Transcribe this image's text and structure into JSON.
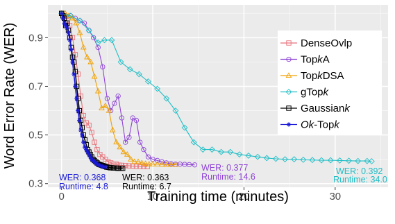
{
  "chart_data": {
    "type": "line",
    "xlabel": "Training time (minutes)",
    "ylabel": "Word Error Rate (WER)",
    "xlim": [
      -1.5,
      35.8
    ],
    "ylim": [
      0.285,
      1.035
    ],
    "xticks": [
      0,
      10,
      20,
      30
    ],
    "yticks": [
      0.3,
      0.5,
      0.7,
      0.9
    ],
    "ytick_labels": [
      "0.3",
      "0.5",
      "0.7",
      "0.9"
    ],
    "grid": true,
    "legend_position": "right",
    "series": [
      {
        "name": "DenseOvlp",
        "color": "#e8727a",
        "marker": "square",
        "x": [
          0,
          0.3,
          0.6,
          0.9,
          1.2,
          1.5,
          1.8,
          2.1,
          2.4,
          2.7,
          3.0,
          3.3,
          3.6,
          3.9,
          4.2,
          4.5,
          4.8,
          5.1,
          5.4,
          5.7,
          6.0,
          6.3,
          6.6,
          7.0,
          7.4,
          7.8,
          8.2,
          8.6,
          9.0,
          9.4
        ],
        "y": [
          1.0,
          0.99,
          0.97,
          0.95,
          0.9,
          0.83,
          0.75,
          0.66,
          0.58,
          0.55,
          0.54,
          0.51,
          0.47,
          0.44,
          0.42,
          0.41,
          0.4,
          0.39,
          0.385,
          0.38,
          0.38,
          0.376,
          0.375,
          0.374,
          0.373,
          0.372,
          0.371,
          0.371,
          0.37,
          0.37
        ]
      },
      {
        "name": "TopkA",
        "color": "#8e44d6",
        "marker": "circle",
        "x": [
          0,
          0.5,
          1.0,
          1.5,
          2.0,
          2.5,
          3.0,
          3.5,
          4.0,
          4.5,
          5.0,
          5.4,
          5.8,
          6.2,
          6.6,
          7.0,
          7.4,
          7.8,
          8.2,
          8.6,
          9.0,
          9.5,
          10.0,
          10.5,
          11.0,
          11.5,
          12.0,
          12.5,
          13.0,
          13.5,
          14.0,
          14.6
        ],
        "y": [
          1.0,
          0.99,
          0.99,
          0.98,
          0.97,
          0.96,
          0.93,
          0.9,
          0.86,
          0.78,
          0.65,
          0.6,
          0.63,
          0.66,
          0.57,
          0.47,
          0.49,
          0.57,
          0.56,
          0.47,
          0.44,
          0.41,
          0.4,
          0.395,
          0.39,
          0.385,
          0.382,
          0.38,
          0.38,
          0.379,
          0.378,
          0.377
        ]
      },
      {
        "name": "TopkDSA",
        "color": "#f0a000",
        "marker": "triangle",
        "x": [
          0,
          0.4,
          0.8,
          1.2,
          1.6,
          2.0,
          2.4,
          2.8,
          3.2,
          3.6,
          4.0,
          4.4,
          4.8,
          5.2,
          5.6,
          6.0,
          6.4,
          6.8,
          7.2,
          7.6,
          8.0,
          8.4,
          8.8,
          9.2,
          9.6,
          10.0,
          10.5,
          11.0,
          11.5,
          12.0,
          12.5
        ],
        "y": [
          1.0,
          1.0,
          0.99,
          0.98,
          0.96,
          0.92,
          0.86,
          0.82,
          0.8,
          0.74,
          0.68,
          0.61,
          0.62,
          0.6,
          0.52,
          0.47,
          0.45,
          0.43,
          0.42,
          0.4,
          0.39,
          0.39,
          0.385,
          0.382,
          0.38,
          0.38,
          0.38,
          0.379,
          0.378,
          0.378,
          0.378
        ]
      },
      {
        "name": "gTopk",
        "color": "#1fbec6",
        "marker": "diamond",
        "x": [
          0,
          1.0,
          2.0,
          3.0,
          4.0,
          4.7,
          5.5,
          6.5,
          7.5,
          8.5,
          9.5,
          10.5,
          11.5,
          12.5,
          13.5,
          14.5,
          15.5,
          16.5,
          17.5,
          18.5,
          19.5,
          20.5,
          21.5,
          22.5,
          23.5,
          24.5,
          25.5,
          26.5,
          27.5,
          28.5,
          29.5,
          30.5,
          31.5,
          32.5,
          33.5,
          34.0
        ],
        "y": [
          1.0,
          0.99,
          0.97,
          0.93,
          0.88,
          0.89,
          0.89,
          0.8,
          0.77,
          0.75,
          0.72,
          0.69,
          0.65,
          0.6,
          0.53,
          0.47,
          0.44,
          0.44,
          0.43,
          0.43,
          0.42,
          0.415,
          0.41,
          0.405,
          0.402,
          0.4,
          0.4,
          0.398,
          0.397,
          0.396,
          0.396,
          0.395,
          0.394,
          0.393,
          0.393,
          0.392
        ]
      },
      {
        "name": "Gaussiank",
        "color": "#000000",
        "marker": "square-open",
        "x": [
          0,
          0.15,
          0.3,
          0.45,
          0.6,
          0.75,
          0.9,
          1.05,
          1.2,
          1.35,
          1.5,
          1.65,
          1.8,
          1.95,
          2.1,
          2.25,
          2.4,
          2.55,
          2.7,
          2.85,
          3.0,
          3.15,
          3.3,
          3.45,
          3.6,
          3.75,
          3.9,
          4.05,
          4.2,
          4.35,
          4.5,
          4.65,
          4.8,
          4.95,
          5.1,
          5.25,
          5.4,
          5.55,
          5.7,
          5.85,
          6.0,
          6.15,
          6.3,
          6.5,
          6.7
        ],
        "y": [
          1.0,
          0.99,
          0.98,
          0.95,
          0.96,
          0.93,
          0.9,
          0.86,
          0.82,
          0.8,
          0.76,
          0.7,
          0.65,
          0.6,
          0.56,
          0.53,
          0.5,
          0.48,
          0.46,
          0.44,
          0.43,
          0.42,
          0.41,
          0.4,
          0.395,
          0.39,
          0.385,
          0.38,
          0.378,
          0.376,
          0.374,
          0.372,
          0.37,
          0.368,
          0.367,
          0.366,
          0.365,
          0.365,
          0.364,
          0.364,
          0.364,
          0.363,
          0.363,
          0.363,
          0.363
        ]
      },
      {
        "name": "Ok-Topk",
        "color": "#1a1ad6",
        "marker": "star",
        "x": [
          0,
          0.15,
          0.3,
          0.45,
          0.6,
          0.75,
          0.9,
          1.05,
          1.2,
          1.35,
          1.5,
          1.65,
          1.8,
          1.95,
          2.1,
          2.25,
          2.4,
          2.55,
          2.7,
          2.85,
          3.0,
          3.15,
          3.3,
          3.45,
          3.6,
          3.75,
          3.9,
          4.05,
          4.2,
          4.35,
          4.5,
          4.65,
          4.8
        ],
        "y": [
          1.0,
          0.98,
          0.96,
          0.95,
          0.94,
          0.92,
          0.89,
          0.85,
          0.8,
          0.75,
          0.7,
          0.65,
          0.6,
          0.56,
          0.52,
          0.5,
          0.47,
          0.45,
          0.44,
          0.43,
          0.42,
          0.41,
          0.4,
          0.395,
          0.39,
          0.385,
          0.38,
          0.377,
          0.375,
          0.372,
          0.37,
          0.369,
          0.368
        ]
      }
    ],
    "legend": [
      {
        "pre": "DenseOvlp",
        "it": "",
        "post": ""
      },
      {
        "pre": "Top",
        "it": "k",
        "post": "A"
      },
      {
        "pre": "Top",
        "it": "k",
        "post": "DSA"
      },
      {
        "pre": "gTop",
        "it": "k",
        "post": ""
      },
      {
        "pre": "Gaussian",
        "it": "k",
        "post": ""
      },
      {
        "pre": "",
        "it": "Ok",
        "post": "-Topk"
      }
    ],
    "annotations": {
      "oktopk": {
        "wer": "WER: 0.368",
        "runtime": "Runtime: 4.8",
        "color": "#1a1ad6"
      },
      "gaussiank": {
        "wer": "WER: 0.363",
        "runtime": "Runtime: 6.7",
        "color": "#000000"
      },
      "topka": {
        "wer": "WER: 0.377",
        "runtime": "Runtime: 14.6",
        "color": "#8e44d6"
      },
      "gtopk": {
        "wer": "WER: 0.392",
        "runtime": "Runtime: 34.0",
        "color": "#1fbec6"
      }
    }
  }
}
